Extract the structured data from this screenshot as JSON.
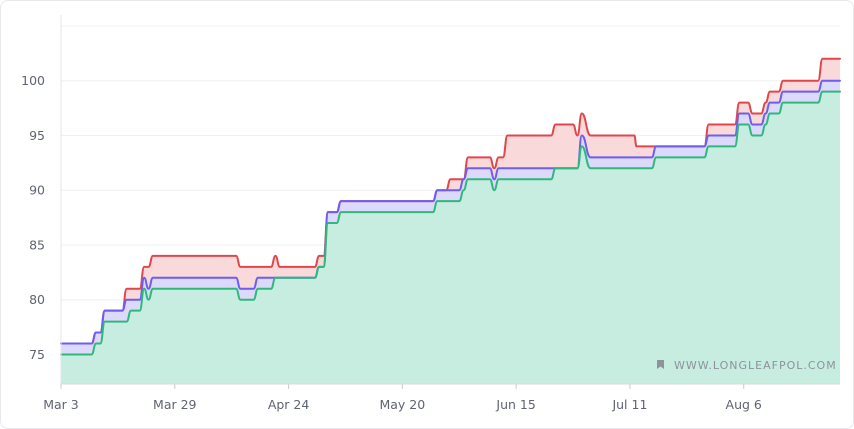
{
  "chart_data": {
    "type": "area",
    "watermark": "WWW.LONGLEAFPOL.COM",
    "xlabel": "",
    "ylabel": "",
    "x_start_date": "Mar 3",
    "x_ticks": [
      {
        "day": 0,
        "label": "Mar 3"
      },
      {
        "day": 26,
        "label": "Mar 29"
      },
      {
        "day": 52,
        "label": "Apr 24"
      },
      {
        "day": 78,
        "label": "May 20"
      },
      {
        "day": 104,
        "label": "Jun 15"
      },
      {
        "day": 130,
        "label": "Jul 11"
      },
      {
        "day": 156,
        "label": "Aug 6"
      }
    ],
    "xlim": [
      0,
      178
    ],
    "y_ticks": [
      75,
      80,
      85,
      90,
      95,
      100
    ],
    "ylim": [
      72.3,
      106.0
    ],
    "grid": true,
    "colors": {
      "top": "#e0474c",
      "top_fill": "#f9d9d9",
      "mid": "#6d5df2",
      "mid_fill": "#dcd9fb",
      "bottom": "#2fb87c",
      "bottom_fill": "#c6ede0",
      "axis_text": "#5f6470",
      "grid": "#eef0f3"
    },
    "series": [
      {
        "points": [
          [
            0,
            76
          ],
          [
            7,
            76
          ],
          [
            8,
            77
          ],
          [
            9,
            77
          ],
          [
            10,
            79
          ],
          [
            14,
            79
          ],
          [
            15,
            81
          ],
          [
            18,
            81
          ],
          [
            19,
            83
          ],
          [
            20,
            83
          ],
          [
            21,
            84
          ],
          [
            40,
            84
          ],
          [
            41,
            83
          ],
          [
            48,
            83
          ],
          [
            49,
            84
          ],
          [
            50,
            83
          ],
          [
            58,
            83
          ],
          [
            59,
            84
          ],
          [
            60,
            84
          ],
          [
            61,
            88
          ],
          [
            63,
            88
          ],
          [
            64,
            89
          ],
          [
            85,
            89
          ],
          [
            86,
            90
          ],
          [
            88,
            90
          ],
          [
            89,
            91
          ],
          [
            92,
            91
          ],
          [
            93,
            93
          ],
          [
            98,
            93
          ],
          [
            99,
            92
          ],
          [
            100,
            93
          ],
          [
            101,
            93
          ],
          [
            102,
            95
          ],
          [
            112,
            95
          ],
          [
            113,
            96
          ],
          [
            117,
            96
          ],
          [
            118,
            95
          ],
          [
            119,
            97
          ],
          [
            121,
            95
          ],
          [
            131,
            95
          ],
          [
            131.5,
            94
          ],
          [
            135,
            94
          ],
          [
            136,
            94
          ],
          [
            147,
            94
          ],
          [
            148,
            96
          ],
          [
            154,
            96
          ],
          [
            155,
            98
          ],
          [
            157,
            98
          ],
          [
            158,
            97
          ],
          [
            160,
            97
          ],
          [
            161,
            98
          ],
          [
            162,
            99
          ],
          [
            164,
            99
          ],
          [
            165,
            100
          ],
          [
            173,
            100
          ],
          [
            174,
            102
          ],
          [
            178,
            102
          ]
        ]
      },
      {
        "points": [
          [
            0,
            76
          ],
          [
            7,
            76
          ],
          [
            8,
            77
          ],
          [
            9,
            77
          ],
          [
            10,
            79
          ],
          [
            14,
            79
          ],
          [
            15,
            80
          ],
          [
            18,
            80
          ],
          [
            19,
            82
          ],
          [
            20,
            81
          ],
          [
            21,
            82
          ],
          [
            40,
            82
          ],
          [
            41,
            81
          ],
          [
            44,
            81
          ],
          [
            45,
            82
          ],
          [
            58,
            82
          ],
          [
            59,
            83
          ],
          [
            60,
            83
          ],
          [
            61,
            88
          ],
          [
            63,
            88
          ],
          [
            64,
            89
          ],
          [
            85,
            89
          ],
          [
            86,
            90
          ],
          [
            91,
            90
          ],
          [
            92,
            91
          ],
          [
            93,
            92
          ],
          [
            98,
            92
          ],
          [
            99,
            91
          ],
          [
            100,
            92
          ],
          [
            101,
            92
          ],
          [
            102,
            92
          ],
          [
            118,
            92
          ],
          [
            119,
            95
          ],
          [
            121,
            93
          ],
          [
            135,
            93
          ],
          [
            136,
            94
          ],
          [
            147,
            94
          ],
          [
            148,
            95
          ],
          [
            154,
            95
          ],
          [
            155,
            97
          ],
          [
            157,
            97
          ],
          [
            158,
            96
          ],
          [
            160,
            96
          ],
          [
            161,
            97
          ],
          [
            162,
            98
          ],
          [
            164,
            98
          ],
          [
            165,
            99
          ],
          [
            173,
            99
          ],
          [
            174,
            100
          ],
          [
            178,
            100
          ]
        ]
      },
      {
        "points": [
          [
            0,
            75
          ],
          [
            7,
            75
          ],
          [
            8,
            76
          ],
          [
            9,
            76
          ],
          [
            10,
            78
          ],
          [
            15,
            78
          ],
          [
            16,
            79
          ],
          [
            18,
            79
          ],
          [
            19,
            81
          ],
          [
            20,
            80
          ],
          [
            21,
            81
          ],
          [
            40,
            81
          ],
          [
            41,
            80
          ],
          [
            44,
            80
          ],
          [
            45,
            81
          ],
          [
            48,
            81
          ],
          [
            49,
            82
          ],
          [
            57,
            82
          ],
          [
            58,
            82
          ],
          [
            59,
            83
          ],
          [
            60,
            83
          ],
          [
            61,
            87
          ],
          [
            63,
            87
          ],
          [
            64,
            88
          ],
          [
            85,
            88
          ],
          [
            86,
            89
          ],
          [
            91,
            89
          ],
          [
            92,
            90
          ],
          [
            93,
            91
          ],
          [
            98,
            91
          ],
          [
            99,
            90
          ],
          [
            100,
            91
          ],
          [
            101,
            91
          ],
          [
            102,
            91
          ],
          [
            112,
            91
          ],
          [
            113,
            92
          ],
          [
            118,
            92
          ],
          [
            119,
            94
          ],
          [
            121,
            92
          ],
          [
            135,
            92
          ],
          [
            136,
            93
          ],
          [
            147,
            93
          ],
          [
            148,
            94
          ],
          [
            154,
            94
          ],
          [
            155,
            96
          ],
          [
            157,
            96
          ],
          [
            158,
            95
          ],
          [
            160,
            95
          ],
          [
            161,
            96
          ],
          [
            162,
            97
          ],
          [
            164,
            97
          ],
          [
            165,
            98
          ],
          [
            173,
            98
          ],
          [
            174,
            99
          ],
          [
            178,
            99
          ]
        ]
      }
    ]
  }
}
